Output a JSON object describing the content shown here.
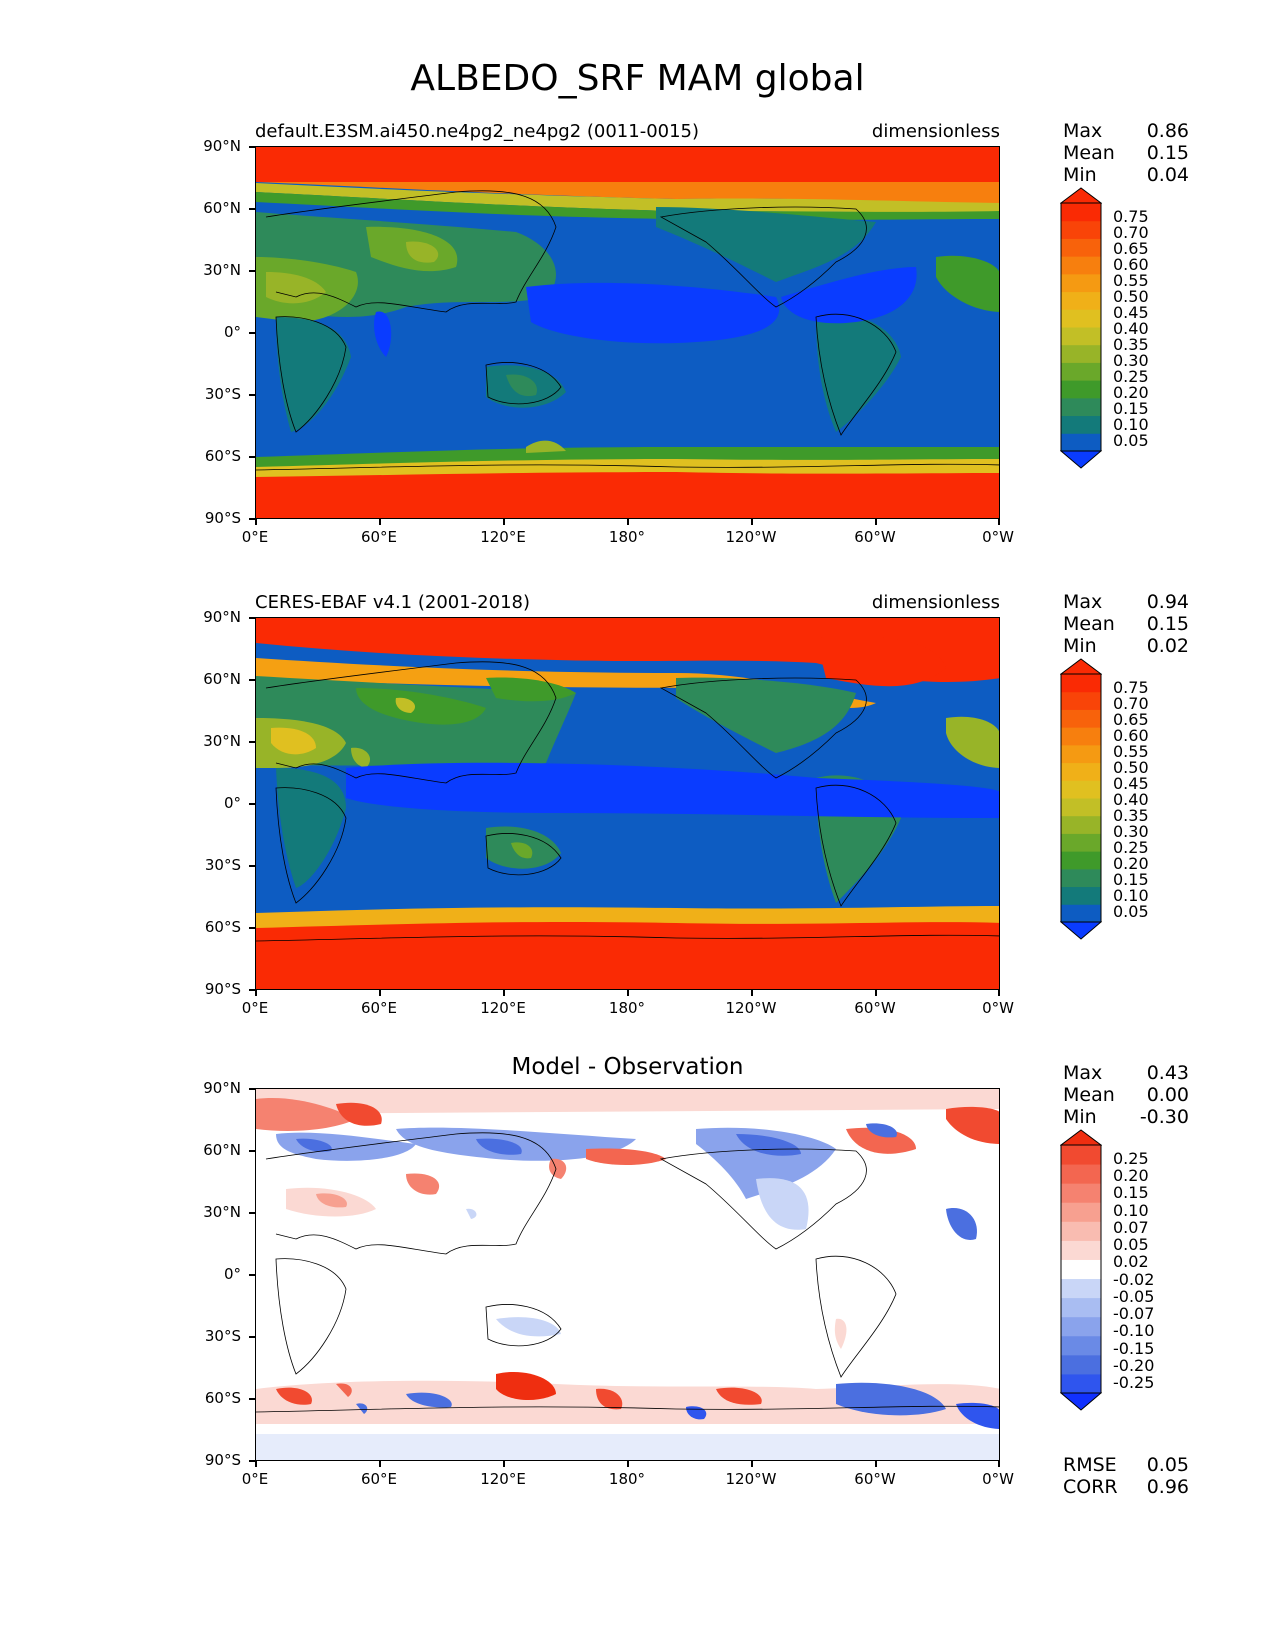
{
  "page_title": "ALBEDO_SRF MAM global",
  "x_tick_labels": [
    "0°E",
    "60°E",
    "120°E",
    "180°",
    "120°W",
    "60°W",
    "0°W"
  ],
  "y_tick_labels": [
    "90°N",
    "60°N",
    "30°N",
    "0°",
    "30°S",
    "60°S",
    "90°S"
  ],
  "stat_labels": {
    "max": "Max",
    "mean": "Mean",
    "min": "Min",
    "rmse": "RMSE",
    "corr": "CORR"
  },
  "panels": [
    {
      "title_left": "default.E3SM.ai450.ne4pg2_ne4pg2 (0011-0015)",
      "title_right": "dimensionless",
      "title_center": "",
      "stats": {
        "max": "0.86",
        "mean": "0.15",
        "min": "0.04"
      },
      "colorbar_labels": [
        "0.75",
        "0.70",
        "0.65",
        "0.60",
        "0.55",
        "0.50",
        "0.45",
        "0.40",
        "0.35",
        "0.30",
        "0.25",
        "0.20",
        "0.15",
        "0.10",
        "0.05"
      ]
    },
    {
      "title_left": "CERES-EBAF v4.1 (2001-2018)",
      "title_right": "dimensionless",
      "title_center": "",
      "stats": {
        "max": "0.94",
        "mean": "0.15",
        "min": "0.02"
      },
      "colorbar_labels": [
        "0.75",
        "0.70",
        "0.65",
        "0.60",
        "0.55",
        "0.50",
        "0.45",
        "0.40",
        "0.35",
        "0.30",
        "0.25",
        "0.20",
        "0.15",
        "0.10",
        "0.05"
      ]
    },
    {
      "title_left": "",
      "title_right": "",
      "title_center": "Model - Observation",
      "stats": {
        "max": "0.43",
        "mean": "0.00",
        "min": "-0.30"
      },
      "colorbar_labels": [
        "0.25",
        "0.20",
        "0.15",
        "0.10",
        "0.07",
        "0.05",
        "0.02",
        "-0.02",
        "-0.05",
        "-0.07",
        "-0.10",
        "-0.15",
        "-0.20",
        "-0.25"
      ],
      "rmse": "0.05",
      "corr": "0.96"
    }
  ],
  "colors": {
    "albedo_scale": [
      "#0a3cff",
      "#0d5cc2",
      "#137a7a",
      "#2e8a5a",
      "#3f9a2a",
      "#6aa82a",
      "#98b428",
      "#c2bf26",
      "#e0c020",
      "#f0b018",
      "#f59a12",
      "#f77f0e",
      "#f8620b",
      "#f94408",
      "#fa2a04",
      "#fa2a04"
    ],
    "diff_scale": [
      "#1131ff",
      "#2f55ee",
      "#4b6fe0",
      "#6a8ae6",
      "#8aa3ec",
      "#a9bdf2",
      "#c9d6f7",
      "#ffffff",
      "#fbd9d3",
      "#f9bcb1",
      "#f7a090",
      "#f58270",
      "#f36650",
      "#f14a30",
      "#ef2e10"
    ],
    "coastline": "#000000"
  }
}
